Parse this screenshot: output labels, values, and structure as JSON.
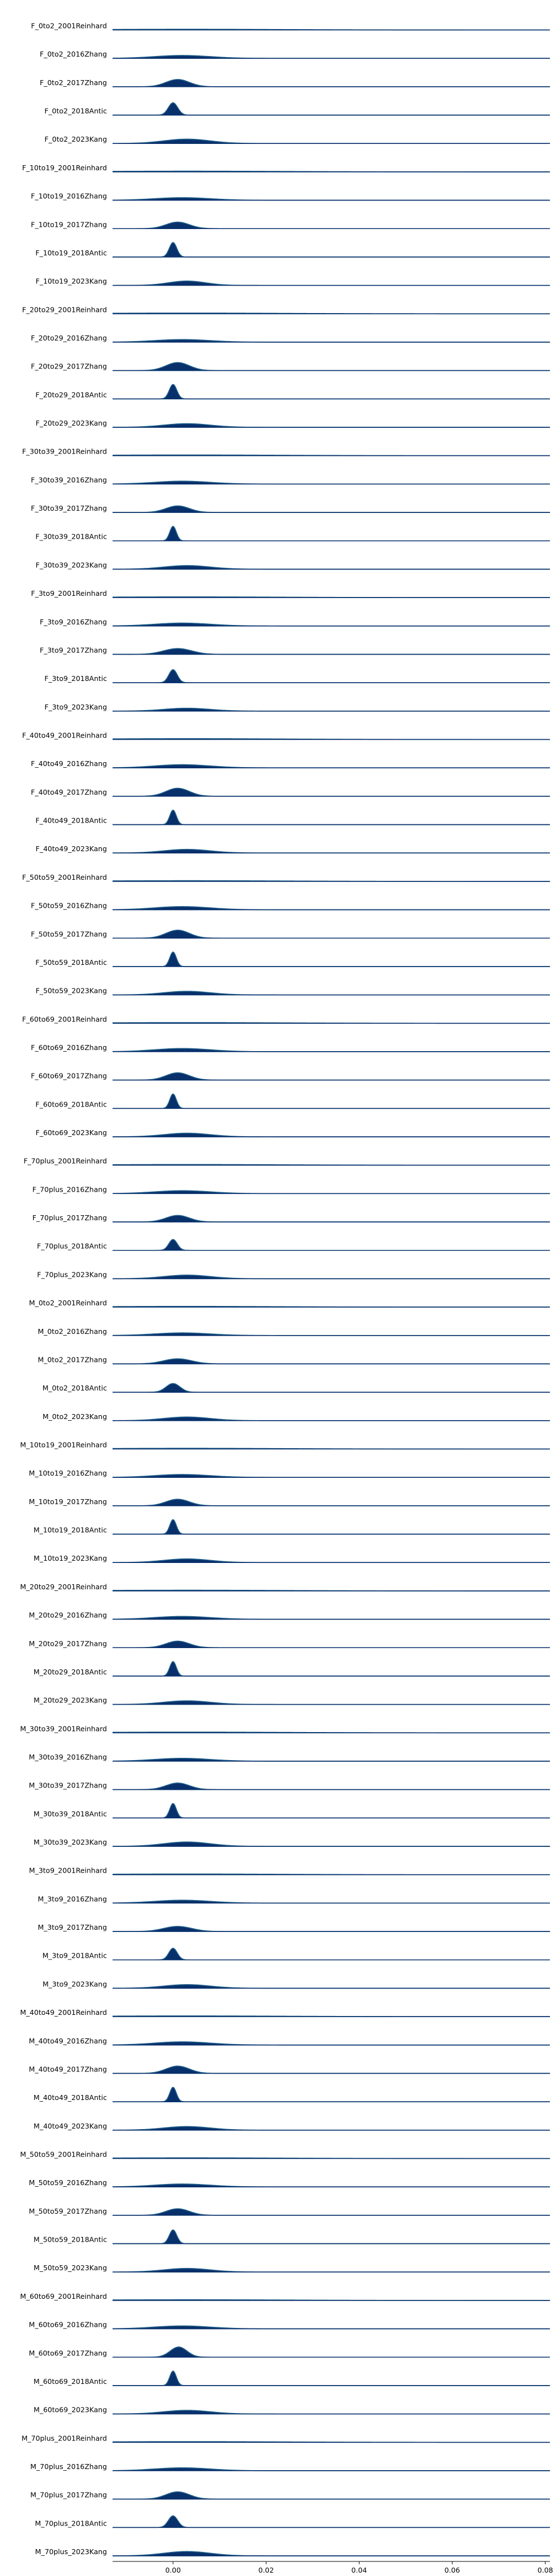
{
  "chart_data": {
    "type": "area",
    "subtype": "ridgeline",
    "title": "",
    "xlabel": "",
    "ylabel": "",
    "xlim": [
      -0.013,
      0.081
    ],
    "x_ticks": [
      0.0,
      0.02,
      0.04,
      0.06,
      0.08
    ],
    "x_tick_labels": [
      "0.00",
      "0.02",
      "0.04",
      "0.06",
      "0.08"
    ],
    "grid": false,
    "fill_color": "#08306b",
    "line_color": "#1f5f8b",
    "series": [
      {
        "name": "F_0to2_2001Reinhard",
        "peak_x": 0.003,
        "width": 0.02,
        "height": 0.05
      },
      {
        "name": "F_0to2_2016Zhang",
        "peak_x": 0.002,
        "width": 0.006,
        "height": 0.2
      },
      {
        "name": "F_0to2_2017Zhang",
        "peak_x": 0.001,
        "width": 0.0025,
        "height": 0.5
      },
      {
        "name": "F_0to2_2018Antic",
        "peak_x": 0.0,
        "width": 0.001,
        "height": 0.85
      },
      {
        "name": "F_0to2_2023Kang",
        "peak_x": 0.003,
        "width": 0.005,
        "height": 0.3
      },
      {
        "name": "F_10to19_2001Reinhard",
        "peak_x": 0.003,
        "width": 0.02,
        "height": 0.05
      },
      {
        "name": "F_10to19_2016Zhang",
        "peak_x": 0.002,
        "width": 0.006,
        "height": 0.18
      },
      {
        "name": "F_10to19_2017Zhang",
        "peak_x": 0.001,
        "width": 0.0025,
        "height": 0.45
      },
      {
        "name": "F_10to19_2018Antic",
        "peak_x": 0.0,
        "width": 0.0008,
        "height": 1.0
      },
      {
        "name": "F_10to19_2023Kang",
        "peak_x": 0.003,
        "width": 0.004,
        "height": 0.3
      },
      {
        "name": "F_20to29_2001Reinhard",
        "peak_x": 0.003,
        "width": 0.02,
        "height": 0.05
      },
      {
        "name": "F_20to29_2016Zhang",
        "peak_x": 0.002,
        "width": 0.006,
        "height": 0.18
      },
      {
        "name": "F_20to29_2017Zhang",
        "peak_x": 0.001,
        "width": 0.0025,
        "height": 0.55
      },
      {
        "name": "F_20to29_2018Antic",
        "peak_x": 0.0,
        "width": 0.0008,
        "height": 1.0
      },
      {
        "name": "F_20to29_2023Kang",
        "peak_x": 0.003,
        "width": 0.005,
        "height": 0.25
      },
      {
        "name": "F_30to39_2001Reinhard",
        "peak_x": 0.003,
        "width": 0.02,
        "height": 0.05
      },
      {
        "name": "F_30to39_2016Zhang",
        "peak_x": 0.002,
        "width": 0.006,
        "height": 0.2
      },
      {
        "name": "F_30to39_2017Zhang",
        "peak_x": 0.001,
        "width": 0.0025,
        "height": 0.45
      },
      {
        "name": "F_30to39_2018Antic",
        "peak_x": 0.0,
        "width": 0.0007,
        "height": 1.0
      },
      {
        "name": "F_30to39_2023Kang",
        "peak_x": 0.003,
        "width": 0.005,
        "height": 0.25
      },
      {
        "name": "F_3to9_2001Reinhard",
        "peak_x": 0.003,
        "width": 0.02,
        "height": 0.05
      },
      {
        "name": "F_3to9_2016Zhang",
        "peak_x": 0.002,
        "width": 0.006,
        "height": 0.2
      },
      {
        "name": "F_3to9_2017Zhang",
        "peak_x": 0.001,
        "width": 0.003,
        "height": 0.4
      },
      {
        "name": "F_3to9_2018Antic",
        "peak_x": 0.0,
        "width": 0.0009,
        "height": 0.9
      },
      {
        "name": "F_3to9_2023Kang",
        "peak_x": 0.003,
        "width": 0.005,
        "height": 0.2
      },
      {
        "name": "F_40to49_2001Reinhard",
        "peak_x": 0.003,
        "width": 0.02,
        "height": 0.06
      },
      {
        "name": "F_40to49_2016Zhang",
        "peak_x": 0.002,
        "width": 0.006,
        "height": 0.22
      },
      {
        "name": "F_40to49_2017Zhang",
        "peak_x": 0.001,
        "width": 0.0025,
        "height": 0.55
      },
      {
        "name": "F_40to49_2018Antic",
        "peak_x": 0.0,
        "width": 0.0007,
        "height": 1.0
      },
      {
        "name": "F_40to49_2023Kang",
        "peak_x": 0.003,
        "width": 0.005,
        "height": 0.25
      },
      {
        "name": "F_50to59_2001Reinhard",
        "peak_x": 0.003,
        "width": 0.02,
        "height": 0.05
      },
      {
        "name": "F_50to59_2016Zhang",
        "peak_x": 0.002,
        "width": 0.006,
        "height": 0.22
      },
      {
        "name": "F_50to59_2017Zhang",
        "peak_x": 0.001,
        "width": 0.0025,
        "height": 0.55
      },
      {
        "name": "F_50to59_2018Antic",
        "peak_x": 0.0,
        "width": 0.0007,
        "height": 1.0
      },
      {
        "name": "F_50to59_2023Kang",
        "peak_x": 0.003,
        "width": 0.005,
        "height": 0.25
      },
      {
        "name": "F_60to69_2001Reinhard",
        "peak_x": 0.003,
        "width": 0.02,
        "height": 0.05
      },
      {
        "name": "F_60to69_2016Zhang",
        "peak_x": 0.002,
        "width": 0.006,
        "height": 0.22
      },
      {
        "name": "F_60to69_2017Zhang",
        "peak_x": 0.001,
        "width": 0.0025,
        "height": 0.5
      },
      {
        "name": "F_60to69_2018Antic",
        "peak_x": 0.0,
        "width": 0.0007,
        "height": 1.0
      },
      {
        "name": "F_60to69_2023Kang",
        "peak_x": 0.003,
        "width": 0.005,
        "height": 0.25
      },
      {
        "name": "F_70plus_2001Reinhard",
        "peak_x": 0.003,
        "width": 0.02,
        "height": 0.05
      },
      {
        "name": "F_70plus_2016Zhang",
        "peak_x": 0.002,
        "width": 0.006,
        "height": 0.2
      },
      {
        "name": "F_70plus_2017Zhang",
        "peak_x": 0.001,
        "width": 0.0025,
        "height": 0.45
      },
      {
        "name": "F_70plus_2018Antic",
        "peak_x": 0.0,
        "width": 0.0009,
        "height": 0.75
      },
      {
        "name": "F_70plus_2023Kang",
        "peak_x": 0.003,
        "width": 0.005,
        "height": 0.25
      },
      {
        "name": "M_0to2_2001Reinhard",
        "peak_x": 0.003,
        "width": 0.02,
        "height": 0.05
      },
      {
        "name": "M_0to2_2016Zhang",
        "peak_x": 0.002,
        "width": 0.006,
        "height": 0.18
      },
      {
        "name": "M_0to2_2017Zhang",
        "peak_x": 0.001,
        "width": 0.003,
        "height": 0.35
      },
      {
        "name": "M_0to2_2018Antic",
        "peak_x": 0.0,
        "width": 0.0015,
        "height": 0.6
      },
      {
        "name": "M_0to2_2023Kang",
        "peak_x": 0.003,
        "width": 0.005,
        "height": 0.25
      },
      {
        "name": "M_10to19_2001Reinhard",
        "peak_x": 0.003,
        "width": 0.02,
        "height": 0.05
      },
      {
        "name": "M_10to19_2016Zhang",
        "peak_x": 0.002,
        "width": 0.006,
        "height": 0.2
      },
      {
        "name": "M_10to19_2017Zhang",
        "peak_x": 0.001,
        "width": 0.0025,
        "height": 0.45
      },
      {
        "name": "M_10to19_2018Antic",
        "peak_x": 0.0,
        "width": 0.0007,
        "height": 1.0
      },
      {
        "name": "M_10to19_2023Kang",
        "peak_x": 0.003,
        "width": 0.005,
        "height": 0.25
      },
      {
        "name": "M_20to29_2001Reinhard",
        "peak_x": 0.003,
        "width": 0.02,
        "height": 0.05
      },
      {
        "name": "M_20to29_2016Zhang",
        "peak_x": 0.002,
        "width": 0.006,
        "height": 0.2
      },
      {
        "name": "M_20to29_2017Zhang",
        "peak_x": 0.001,
        "width": 0.0025,
        "height": 0.45
      },
      {
        "name": "M_20to29_2018Antic",
        "peak_x": 0.0,
        "width": 0.0007,
        "height": 1.0
      },
      {
        "name": "M_20to29_2023Kang",
        "peak_x": 0.003,
        "width": 0.005,
        "height": 0.25
      },
      {
        "name": "M_30to39_2001Reinhard",
        "peak_x": 0.003,
        "width": 0.02,
        "height": 0.05
      },
      {
        "name": "M_30to39_2016Zhang",
        "peak_x": 0.002,
        "width": 0.006,
        "height": 0.2
      },
      {
        "name": "M_30to39_2017Zhang",
        "peak_x": 0.001,
        "width": 0.0025,
        "height": 0.45
      },
      {
        "name": "M_30to39_2018Antic",
        "peak_x": 0.0,
        "width": 0.0007,
        "height": 1.0
      },
      {
        "name": "M_30to39_2023Kang",
        "peak_x": 0.003,
        "width": 0.005,
        "height": 0.3
      },
      {
        "name": "M_3to9_2001Reinhard",
        "peak_x": 0.003,
        "width": 0.02,
        "height": 0.05
      },
      {
        "name": "M_3to9_2016Zhang",
        "peak_x": 0.002,
        "width": 0.006,
        "height": 0.2
      },
      {
        "name": "M_3to9_2017Zhang",
        "peak_x": 0.001,
        "width": 0.003,
        "height": 0.35
      },
      {
        "name": "M_3to9_2018Antic",
        "peak_x": 0.0,
        "width": 0.0009,
        "height": 0.8
      },
      {
        "name": "M_3to9_2023Kang",
        "peak_x": 0.003,
        "width": 0.005,
        "height": 0.25
      },
      {
        "name": "M_40to49_2001Reinhard",
        "peak_x": 0.003,
        "width": 0.02,
        "height": 0.05
      },
      {
        "name": "M_40to49_2016Zhang",
        "peak_x": 0.002,
        "width": 0.006,
        "height": 0.22
      },
      {
        "name": "M_40to49_2017Zhang",
        "peak_x": 0.001,
        "width": 0.0025,
        "height": 0.5
      },
      {
        "name": "M_40to49_2018Antic",
        "peak_x": 0.0,
        "width": 0.0007,
        "height": 1.0
      },
      {
        "name": "M_40to49_2023Kang",
        "peak_x": 0.003,
        "width": 0.005,
        "height": 0.25
      },
      {
        "name": "M_50to59_2001Reinhard",
        "peak_x": 0.003,
        "width": 0.02,
        "height": 0.05
      },
      {
        "name": "M_50to59_2016Zhang",
        "peak_x": 0.002,
        "width": 0.006,
        "height": 0.2
      },
      {
        "name": "M_50to59_2017Zhang",
        "peak_x": 0.001,
        "width": 0.0025,
        "height": 0.45
      },
      {
        "name": "M_50to59_2018Antic",
        "peak_x": 0.0,
        "width": 0.0008,
        "height": 0.95
      },
      {
        "name": "M_50to59_2023Kang",
        "peak_x": 0.003,
        "width": 0.005,
        "height": 0.25
      },
      {
        "name": "M_60to69_2001Reinhard",
        "peak_x": 0.003,
        "width": 0.02,
        "height": 0.05
      },
      {
        "name": "M_60to69_2016Zhang",
        "peak_x": 0.002,
        "width": 0.006,
        "height": 0.2
      },
      {
        "name": "M_60to69_2017Zhang",
        "peak_x": 0.0012,
        "width": 0.0018,
        "height": 0.7
      },
      {
        "name": "M_60to69_2018Antic",
        "peak_x": 0.0,
        "width": 0.0007,
        "height": 1.0
      },
      {
        "name": "M_60to69_2023Kang",
        "peak_x": 0.003,
        "width": 0.005,
        "height": 0.25
      },
      {
        "name": "M_70plus_2001Reinhard",
        "peak_x": 0.003,
        "width": 0.02,
        "height": 0.05
      },
      {
        "name": "M_70plus_2016Zhang",
        "peak_x": 0.002,
        "width": 0.006,
        "height": 0.2
      },
      {
        "name": "M_70plus_2017Zhang",
        "peak_x": 0.001,
        "width": 0.0025,
        "height": 0.5
      },
      {
        "name": "M_70plus_2018Antic",
        "peak_x": 0.0,
        "width": 0.001,
        "height": 0.8
      },
      {
        "name": "M_70plus_2023Kang",
        "peak_x": 0.003,
        "width": 0.005,
        "height": 0.3
      }
    ]
  }
}
